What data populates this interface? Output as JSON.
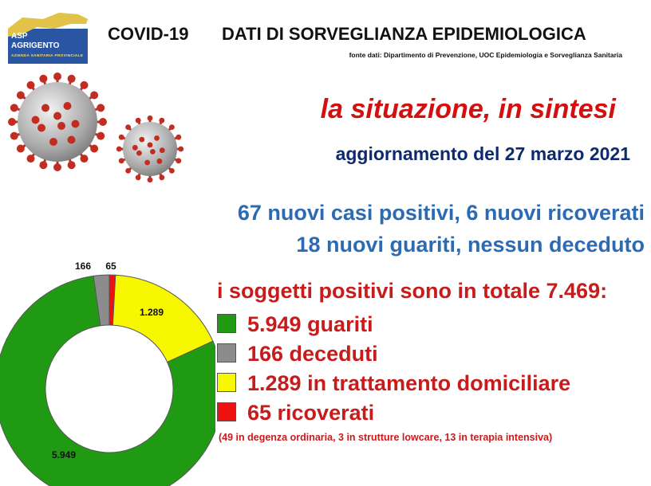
{
  "header": {
    "logo_line1": "ASP",
    "logo_line2": "AGRIGENTO",
    "logo_line3": "AZIENDA SANITARIA PROVINCIALE",
    "title_left": "COVID-19",
    "title_right": "DATI DI SORVEGLIANZA EPIDEMIOLOGICA",
    "source": "fonte dati: Dipartimento di Prevenzione, UOC Epidemiologia e Sorveglianza Sanitaria"
  },
  "summary": {
    "title": "la situazione, in sintesi",
    "update": "aggiornamento del 27 marzo 2021",
    "news_line1": "67 nuovi casi positivi, 6 nuovi ricoverati",
    "news_line2": "18 nuovi guariti, nessun deceduto",
    "total": "i soggetti positivi sono in totale 7.469:",
    "legend": [
      {
        "label": "5.949 guariti",
        "color": "#1f9a12"
      },
      {
        "label": "166 deceduti",
        "color": "#8c8c8c"
      },
      {
        "label": "1.289 in trattamento domiciliare",
        "color": "#f7f700"
      },
      {
        "label": "65 ricoverati",
        "color": "#ee1111"
      }
    ],
    "note": "(49 in degenza ordinaria, 3 in strutture lowcare, 13 in terapia intensiva)"
  },
  "colors": {
    "title_red": "#d40f0f",
    "update_navy": "#0d2a6e",
    "news_blue": "#2c6bb3",
    "text_red": "#c81b1b"
  },
  "chart_data": {
    "type": "pie",
    "donut": true,
    "slices": [
      {
        "value": 65,
        "display": "65",
        "color": "#ee1111"
      },
      {
        "value": 1289,
        "display": "1.289",
        "color": "#f7f700"
      },
      {
        "value": 5949,
        "display": "5.949",
        "color": "#1f9a12"
      },
      {
        "value": 166,
        "display": "166",
        "color": "#8c8c8c"
      }
    ]
  }
}
